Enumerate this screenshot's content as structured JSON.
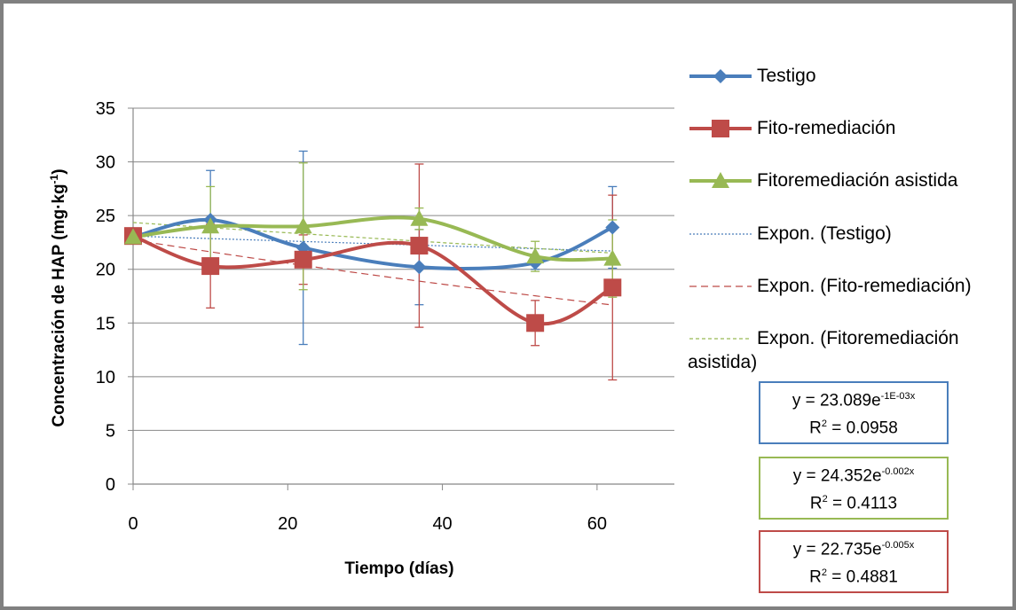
{
  "chart_data": {
    "type": "line",
    "title": "",
    "xlabel": "Tiempo (días)",
    "ylabel": "Concentración de HAP (mg·kg",
    "ylabel_sup": "-1",
    "ylabel_tail": ")",
    "xlim": [
      0,
      70
    ],
    "ylim": [
      0,
      35
    ],
    "xticks": [
      0,
      20,
      40,
      60
    ],
    "yticks": [
      0,
      5,
      10,
      15,
      20,
      25,
      30,
      35
    ],
    "grid": "horizontal",
    "legend_position": "right",
    "series": [
      {
        "name": "Testigo",
        "color": "#4a7ebb",
        "marker": "diamond",
        "x": [
          0,
          10,
          22,
          37,
          52,
          62
        ],
        "values": [
          23,
          24.6,
          22,
          20.2,
          20.6,
          23.9
        ],
        "error": [
          0.3,
          4.6,
          9.0,
          3.5,
          0.6,
          3.8
        ]
      },
      {
        "name": "Fito-remediación",
        "color": "#be4b48",
        "marker": "square",
        "x": [
          0,
          10,
          22,
          37,
          52,
          62
        ],
        "values": [
          23.1,
          20.3,
          20.9,
          22.2,
          15,
          18.3
        ],
        "error": [
          0.5,
          3.9,
          2.3,
          7.6,
          2.1,
          8.6
        ]
      },
      {
        "name": "Fitoremediación asistida",
        "color": "#98b954",
        "marker": "triangle",
        "x": [
          0,
          10,
          22,
          37,
          52,
          62
        ],
        "values": [
          23,
          24,
          24,
          24.7,
          21.2,
          21
        ],
        "error": [
          0.6,
          3.7,
          5.9,
          1.0,
          1.4,
          3.6
        ]
      }
    ],
    "trendlines": [
      {
        "name": "Expon. (Testigo)",
        "color": "#4a7ebb",
        "a": 23.089,
        "b": -0.001,
        "dash": "2,2"
      },
      {
        "name": "Expon. (Fito-remediación)",
        "color": "#be4b48",
        "a": 22.735,
        "b": -0.005,
        "dash": "8,5"
      },
      {
        "name": "Expon. (Fitoremediación asistida)",
        "color": "#98b954",
        "a": 24.352,
        "b": -0.002,
        "dash": "4,3"
      }
    ]
  },
  "legend": {
    "items": [
      {
        "label": "Testigo",
        "kind": "series",
        "color": "#4a7ebb",
        "marker": "diamond"
      },
      {
        "label": "Fito-remediación",
        "kind": "series",
        "color": "#be4b48",
        "marker": "square"
      },
      {
        "label": "Fitoremediación asistida",
        "kind": "series",
        "color": "#98b954",
        "marker": "triangle"
      },
      {
        "label": "Expon. (Testigo)",
        "kind": "trend",
        "color": "#4a7ebb",
        "dash": "2,2"
      },
      {
        "label": "Expon. (Fito-remediación)",
        "kind": "trend",
        "color": "#be4b48",
        "dash": "8,5"
      },
      {
        "label": "Expon. (Fitoremediación",
        "label2": "asistida)",
        "kind": "trend",
        "color": "#98b954",
        "dash": "4,3"
      }
    ]
  },
  "equations": [
    {
      "prefix": "y = 23.089e",
      "exp": "-1E-03",
      "suffix": "x",
      "r2_prefix": "R",
      "r2_sup": "2",
      "r2_value": " = 0.0958",
      "color": "#4a7ebb"
    },
    {
      "prefix": "y = 24.352e",
      "exp": "-0.002",
      "suffix": "x",
      "r2_prefix": "R",
      "r2_sup": "2",
      "r2_value": " = 0.4113",
      "color": "#98b954"
    },
    {
      "prefix": "y = 22.735e",
      "exp": "-0.005",
      "suffix": "x",
      "r2_prefix": "R",
      "r2_sup": "2",
      "r2_value": " = 0.4881",
      "color": "#be4b48"
    }
  ]
}
